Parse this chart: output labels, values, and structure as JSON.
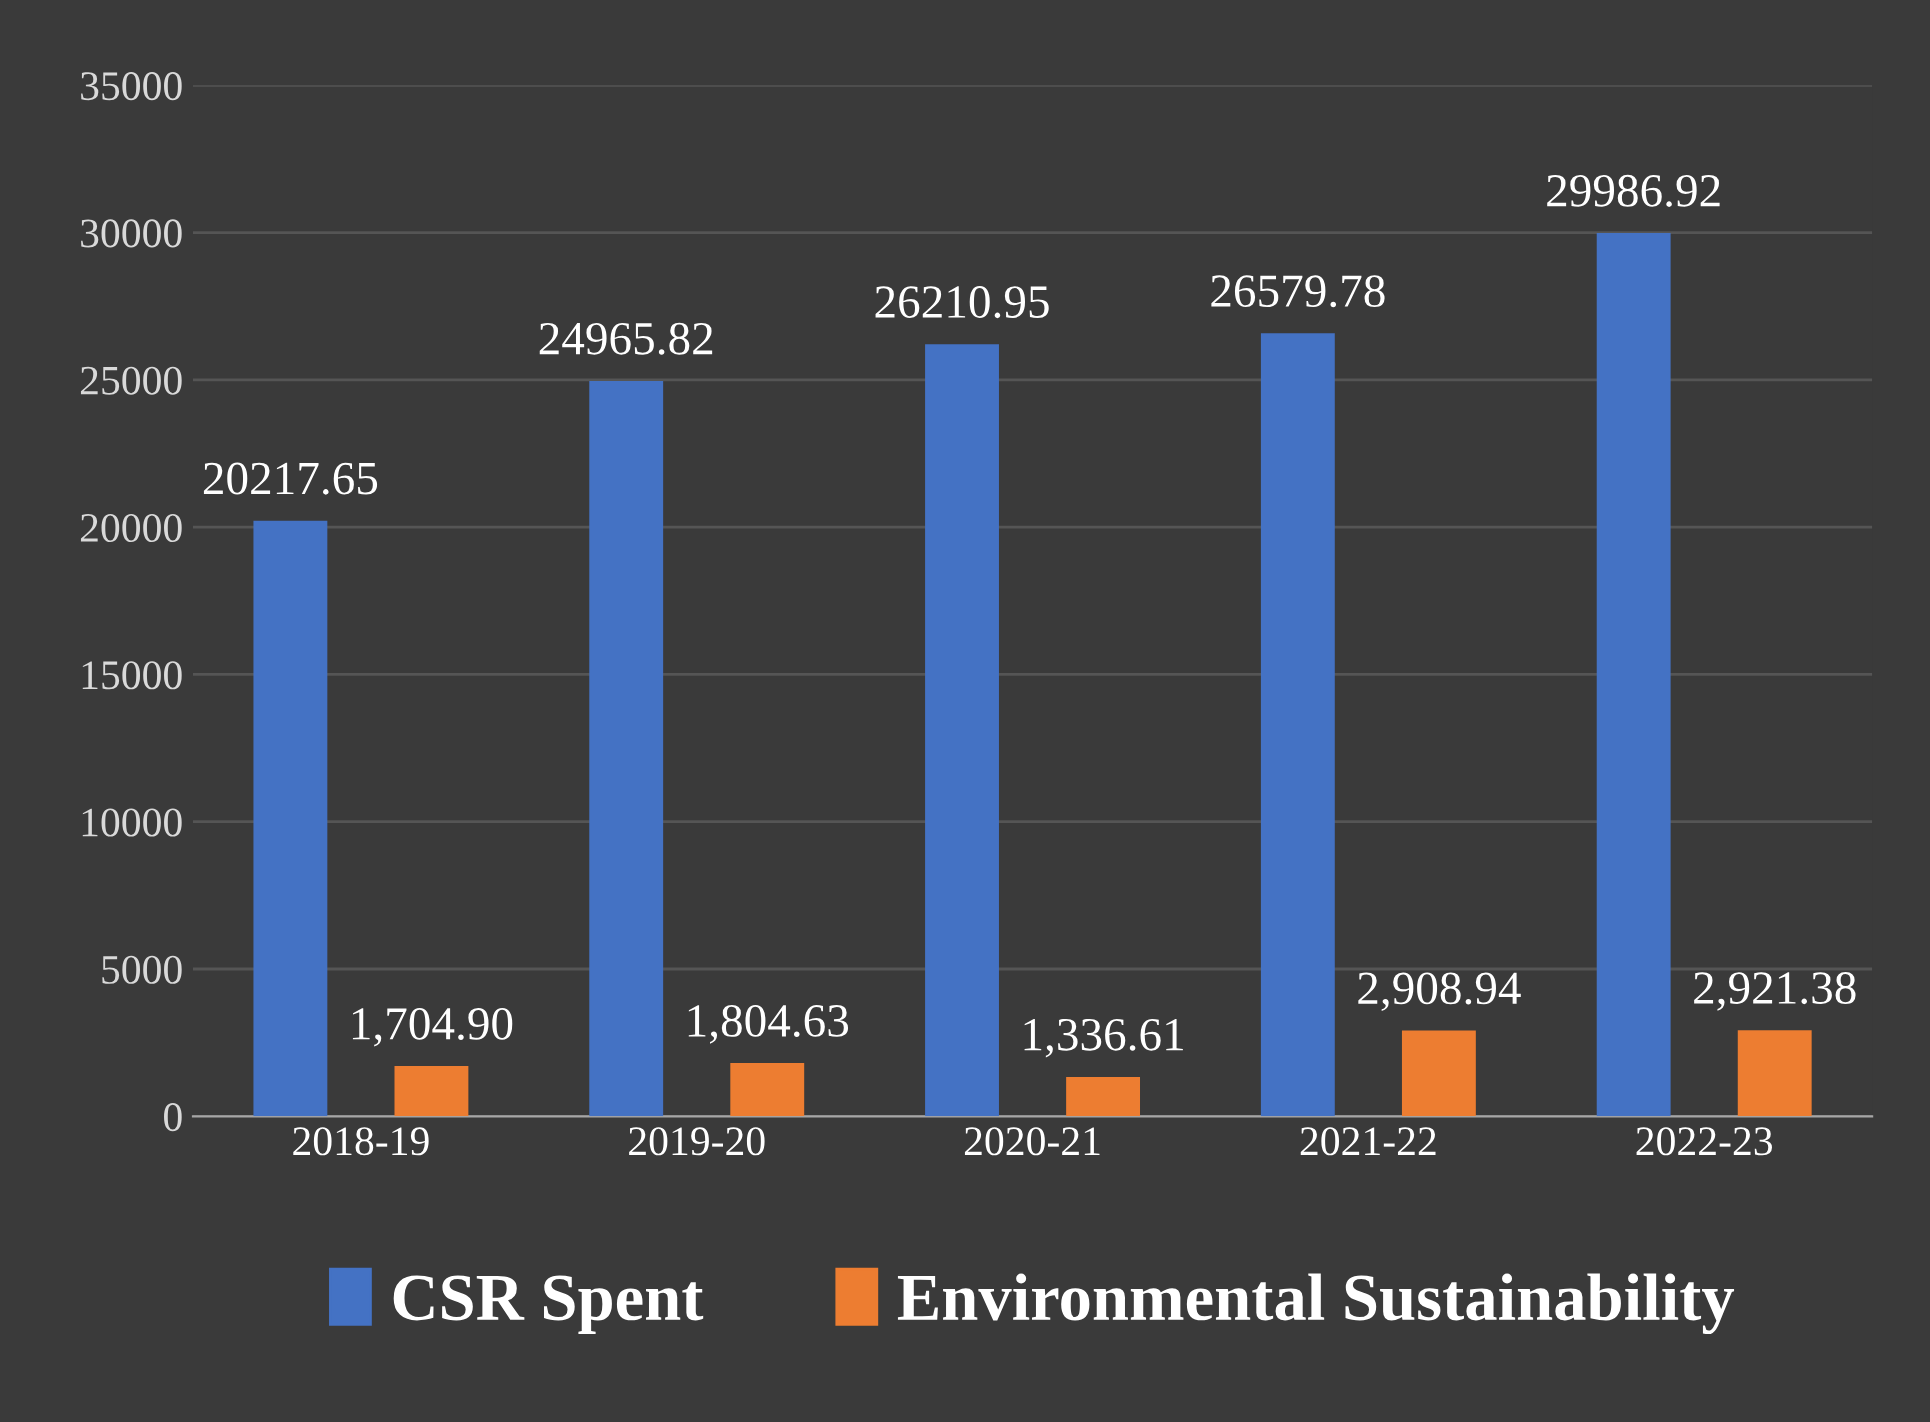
{
  "chart_data": {
    "type": "bar",
    "categories": [
      "2018-19",
      "2019-20",
      "2020-21",
      "2021-22",
      "2022-23"
    ],
    "series": [
      {
        "name": "CSR Spent",
        "color": "#4472c4",
        "values": [
          20217.65,
          24965.82,
          26210.95,
          26579.78,
          29986.92
        ],
        "value_labels": [
          "20217.65",
          "24965.82",
          "26210.95",
          "26579.78",
          "29986.92"
        ]
      },
      {
        "name": "Environmental Sustainability",
        "color": "#ed7d31",
        "values": [
          1704.9,
          1804.63,
          1336.61,
          2908.94,
          2921.38
        ],
        "value_labels": [
          "1,704.90",
          "1,804.63",
          "1,336.61",
          "2,908.94",
          "2,921.38"
        ]
      }
    ],
    "ylim": [
      0,
      35000
    ],
    "yticks": [
      0,
      5000,
      10000,
      15000,
      20000,
      25000,
      30000,
      35000
    ],
    "grid": "y",
    "legend": "bottom"
  }
}
